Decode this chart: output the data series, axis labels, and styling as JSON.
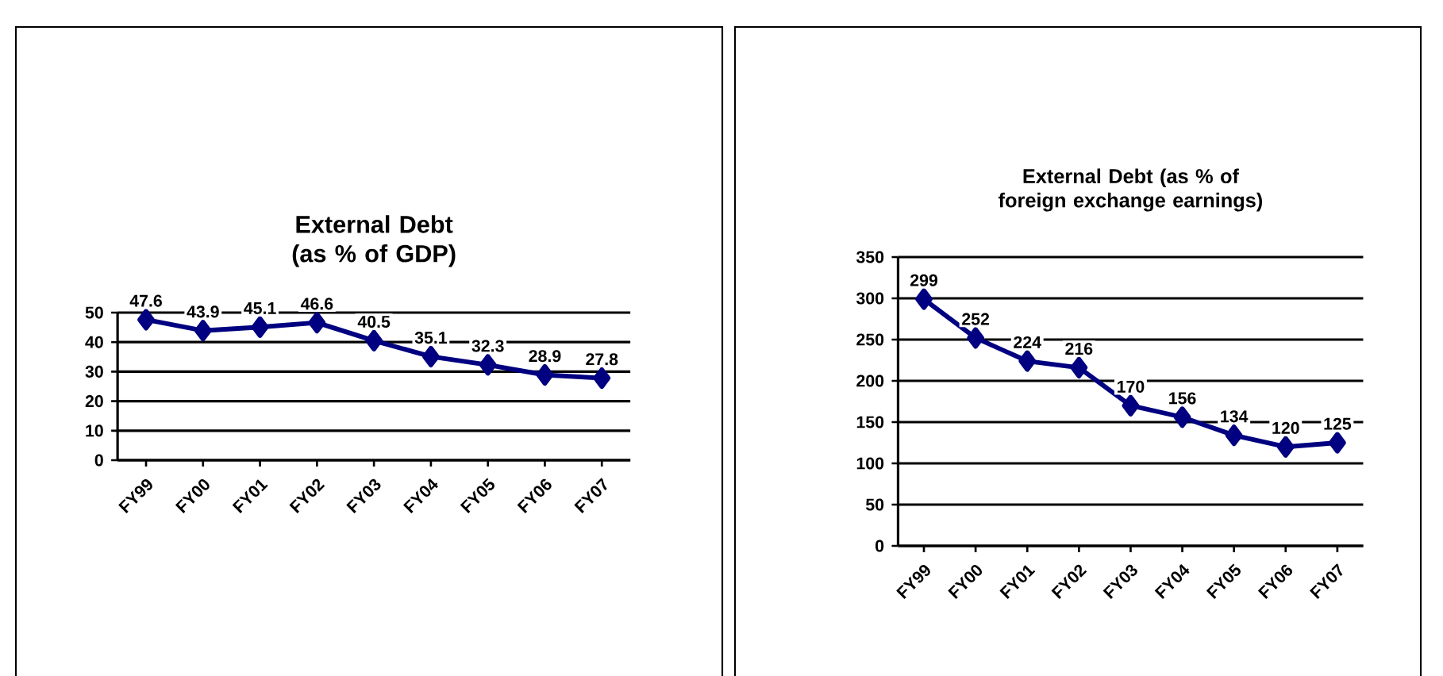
{
  "chart_data": [
    {
      "type": "line",
      "title": "External Debt (as % of GDP)",
      "categories": [
        "FY99",
        "FY00",
        "FY01",
        "FY02",
        "FY03",
        "FY04",
        "FY05",
        "FY06",
        "FY07"
      ],
      "series": [
        {
          "color": "#000080",
          "values": [
            47.6,
            43.9,
            45.1,
            46.6,
            40.5,
            35.1,
            32.3,
            28.9,
            27.8
          ]
        }
      ],
      "ylim": [
        0,
        50
      ],
      "yticks": [
        0,
        10,
        20,
        30,
        40,
        50
      ],
      "grid": "y",
      "marker": "diamond",
      "data_labels": true
    },
    {
      "type": "line",
      "title": "External Debt (as % of foreign exchange earnings)",
      "categories": [
        "FY99",
        "FY00",
        "FY01",
        "FY02",
        "FY03",
        "FY04",
        "FY05",
        "FY06",
        "FY07"
      ],
      "series": [
        {
          "color": "#000080",
          "values": [
            299,
            252,
            224,
            216,
            170,
            156,
            134,
            120,
            125
          ]
        }
      ],
      "ylim": [
        0,
        350
      ],
      "yticks": [
        0,
        50,
        100,
        150,
        200,
        250,
        300,
        350
      ],
      "grid": "y",
      "marker": "diamond",
      "data_labels": true
    }
  ]
}
